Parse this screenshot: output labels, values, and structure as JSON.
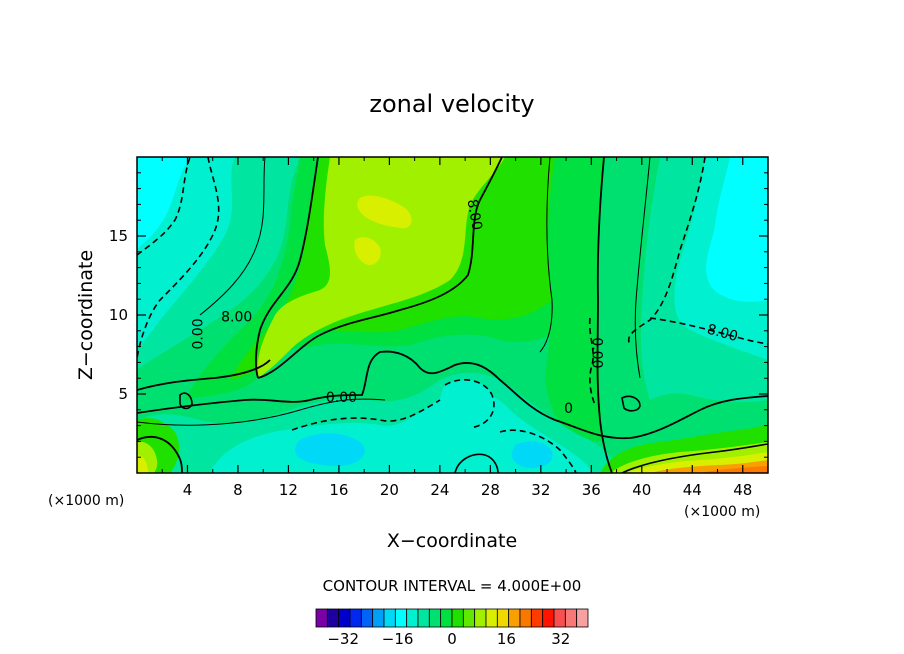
{
  "chart_data": {
    "type": "contour",
    "title": "zonal velocity",
    "xlabel": "X−coordinate",
    "ylabel": "Z−coordinate",
    "x_units_left": "(×1000 m)",
    "x_units_right": "(×1000 m)",
    "xlim": [
      0,
      50
    ],
    "ylim": [
      0,
      20
    ],
    "xticks": [
      4,
      8,
      12,
      16,
      20,
      24,
      28,
      32,
      36,
      40,
      44,
      48
    ],
    "yticks": [
      5,
      10,
      15
    ],
    "contour_interval_text": "CONTOUR INTERVAL = 4.000E+00",
    "contour_interval": 4,
    "contour_labels": [
      {
        "text": "8.00",
        "x": 7.9,
        "y": 9.6
      },
      {
        "text": "8.00",
        "x": 26.4,
        "y": 16.3
      },
      {
        "text": "8.00",
        "x": 46.3,
        "y": 8.6
      },
      {
        "text": "0.00",
        "x": 16.2,
        "y": 4.5
      },
      {
        "text": "0.00",
        "x": 5.2,
        "y": 8.8
      },
      {
        "text": "0.00",
        "x": 36.1,
        "y": 7.6
      },
      {
        "text": "0",
        "x": 34.2,
        "y": 3.8
      }
    ],
    "colorbar": {
      "tick_labels": [
        "−32",
        "−16",
        "0",
        "16",
        "32"
      ],
      "tick_values": [
        -32,
        -16,
        0,
        16,
        32
      ],
      "min": -40,
      "max": 40,
      "colors": [
        "#7a00a8",
        "#1e00a0",
        "#0000cc",
        "#0028f0",
        "#0064f8",
        "#00a0f8",
        "#00d8f8",
        "#00ffff",
        "#00f0d0",
        "#00e6a0",
        "#00e070",
        "#00e040",
        "#20e000",
        "#60e800",
        "#a0f000",
        "#d8f000",
        "#f0d800",
        "#f8a000",
        "#f87800",
        "#ff3c00",
        "#ff1400",
        "#f85050",
        "#f87878",
        "#f8a0a0"
      ]
    },
    "field_summary": {
      "colors_levels": {
        "cyan": "#00ffff",
        "aqua": "#00f0d0",
        "seagreen": "#00e6a0",
        "green": "#00e070",
        "green2": "#00e040",
        "lime": "#20e000",
        "yelgreen": "#a0f000",
        "yellow": "#d8f000",
        "orange": "#f8a000",
        "orangered": "#ff7800",
        "lightcyan": "#00d8f8"
      }
    }
  }
}
